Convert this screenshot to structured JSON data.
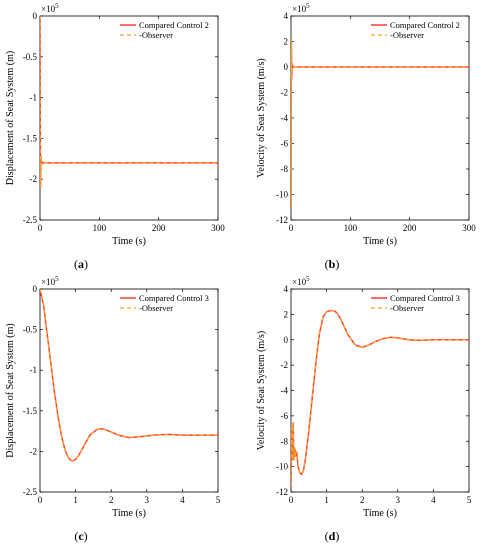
{
  "chart_data": [
    {
      "type": "line",
      "panel_label": "(a)",
      "xlabel": "Time (s)",
      "ylabel": "Displacement of Seat System (m)",
      "y_multiplier": "×10^5",
      "xlim": [
        0,
        300
      ],
      "ylim": [
        -2.5,
        0
      ],
      "xticks": [
        0,
        100,
        200,
        300
      ],
      "yticks": [
        0,
        -0.5,
        -1,
        -1.5,
        -2,
        -2.5
      ],
      "ytick_labels": [
        "0",
        "-0.5",
        "-1",
        "-1.5",
        "-2",
        "-2.5"
      ],
      "legend_position": "top-right",
      "series": [
        {
          "name": "Compared Control 2",
          "color": "#ff3b3b",
          "dash": "solid",
          "x": [
            0,
            0.3,
            0.9,
            1.7,
            2.5,
            3.5,
            5,
            300
          ],
          "y": [
            0,
            -1.0,
            -2.1,
            -1.72,
            -1.83,
            -1.79,
            -1.8,
            -1.8
          ]
        },
        {
          "name": "Observer",
          "color": "#f5a623",
          "dash": "dashed",
          "x": [
            0,
            0.3,
            0.9,
            1.7,
            2.5,
            3.5,
            5,
            300
          ],
          "y": [
            0,
            -1.0,
            -2.1,
            -1.72,
            -1.83,
            -1.79,
            -1.8,
            -1.8
          ]
        }
      ]
    },
    {
      "type": "line",
      "panel_label": "(b)",
      "xlabel": "Time (s)",
      "ylabel": "Velocity of Seat System (m/s)",
      "y_multiplier": "×10^5",
      "xlim": [
        0,
        300
      ],
      "ylim": [
        -12,
        4
      ],
      "xticks": [
        0,
        100,
        200,
        300
      ],
      "yticks": [
        4,
        2,
        0,
        -2,
        -4,
        -6,
        -8,
        -10,
        -12
      ],
      "ytick_labels": [
        "4",
        "2",
        "0",
        "-2",
        "-4",
        "-6",
        "-8",
        "-10",
        "-12"
      ],
      "legend_position": "top-right",
      "series": [
        {
          "name": "Compared Control 2",
          "color": "#ff3b3b",
          "dash": "solid",
          "x": [
            0,
            0.3,
            0.6,
            1.2,
            2,
            3,
            5,
            300
          ],
          "y": [
            0,
            -11,
            2.2,
            -1,
            0.3,
            0,
            0,
            0
          ]
        },
        {
          "name": "Observer",
          "color": "#f5a623",
          "dash": "dashed",
          "x": [
            0,
            0.3,
            0.6,
            1.2,
            2,
            3,
            5,
            300
          ],
          "y": [
            0,
            -11,
            2.2,
            -1,
            0.3,
            0,
            0,
            0
          ]
        }
      ]
    },
    {
      "type": "line",
      "panel_label": "(c)",
      "xlabel": "Time (s)",
      "ylabel": "Displacement of Seat System (m)",
      "y_multiplier": "×10^5",
      "xlim": [
        0,
        5
      ],
      "ylim": [
        -2.5,
        0
      ],
      "xticks": [
        0,
        1,
        2,
        3,
        4,
        5
      ],
      "yticks": [
        0,
        -0.5,
        -1,
        -1.5,
        -2,
        -2.5
      ],
      "ytick_labels": [
        "0",
        "-0.5",
        "-1",
        "-1.5",
        "-2",
        "-2.5"
      ],
      "legend_position": "top-right",
      "series": [
        {
          "name": "Compared Control 3",
          "color": "#ff3b3b",
          "dash": "solid",
          "x": [
            0,
            0.1,
            0.2,
            0.3,
            0.4,
            0.5,
            0.6,
            0.7,
            0.8,
            0.9,
            1.0,
            1.1,
            1.2,
            1.4,
            1.6,
            1.75,
            2.0,
            2.2,
            2.5,
            2.8,
            3.2,
            3.6,
            4.0,
            4.5,
            5.0
          ],
          "y": [
            0,
            -0.2,
            -0.55,
            -0.9,
            -1.25,
            -1.55,
            -1.8,
            -1.98,
            -2.08,
            -2.12,
            -2.1,
            -2.04,
            -1.96,
            -1.8,
            -1.73,
            -1.72,
            -1.76,
            -1.8,
            -1.83,
            -1.82,
            -1.8,
            -1.79,
            -1.8,
            -1.8,
            -1.8
          ]
        },
        {
          "name": "Observer",
          "color": "#f5a623",
          "dash": "dashed",
          "x": [
            0,
            0.1,
            0.2,
            0.3,
            0.4,
            0.5,
            0.6,
            0.7,
            0.8,
            0.9,
            1.0,
            1.1,
            1.2,
            1.4,
            1.6,
            1.75,
            2.0,
            2.2,
            2.5,
            2.8,
            3.2,
            3.6,
            4.0,
            4.5,
            5.0
          ],
          "y": [
            0,
            -0.2,
            -0.55,
            -0.9,
            -1.25,
            -1.55,
            -1.8,
            -1.98,
            -2.08,
            -2.12,
            -2.1,
            -2.04,
            -1.96,
            -1.8,
            -1.73,
            -1.72,
            -1.76,
            -1.8,
            -1.83,
            -1.82,
            -1.8,
            -1.79,
            -1.8,
            -1.8,
            -1.8
          ]
        }
      ]
    },
    {
      "type": "line",
      "panel_label": "(d)",
      "xlabel": "Time (s)",
      "ylabel": "Velocity of Seat System (m/s)",
      "y_multiplier": "×10^5",
      "xlim": [
        0,
        5
      ],
      "ylim": [
        -12,
        4
      ],
      "xticks": [
        0,
        1,
        2,
        3,
        4,
        5
      ],
      "yticks": [
        4,
        2,
        0,
        -2,
        -4,
        -6,
        -8,
        -10,
        -12
      ],
      "ytick_labels": [
        "4",
        "2",
        "0",
        "-2",
        "-4",
        "-6",
        "-8",
        "-10",
        "-12"
      ],
      "legend_position": "top-right",
      "series": [
        {
          "name": "Compared Control 3",
          "color": "#ff3b3b",
          "dash": "solid",
          "x": [
            0,
            0.02,
            0.04,
            0.06,
            0.08,
            0.1,
            0.13,
            0.16,
            0.2,
            0.25,
            0.3,
            0.35,
            0.4,
            0.5,
            0.6,
            0.7,
            0.8,
            0.9,
            1.0,
            1.1,
            1.2,
            1.3,
            1.4,
            1.5,
            1.6,
            1.8,
            2.0,
            2.2,
            2.4,
            2.6,
            2.8,
            3.0,
            3.3,
            3.6,
            4.0,
            4.5,
            5.0
          ],
          "y": [
            -11.5,
            -7,
            -9.5,
            -6.5,
            -9.5,
            -8.5,
            -9.2,
            -8.8,
            -10,
            -10.5,
            -10.6,
            -10.3,
            -9.5,
            -7.2,
            -4.5,
            -1.8,
            0.5,
            1.8,
            2.2,
            2.3,
            2.3,
            2.1,
            1.6,
            1,
            0.4,
            -0.4,
            -0.6,
            -0.4,
            -0.1,
            0.1,
            0.2,
            0.15,
            0,
            -0.05,
            0,
            0,
            0
          ]
        },
        {
          "name": "Observer",
          "color": "#f5a623",
          "dash": "dashed",
          "x": [
            0,
            0.02,
            0.04,
            0.06,
            0.08,
            0.1,
            0.13,
            0.16,
            0.2,
            0.25,
            0.3,
            0.35,
            0.4,
            0.5,
            0.6,
            0.7,
            0.8,
            0.9,
            1.0,
            1.1,
            1.2,
            1.3,
            1.4,
            1.5,
            1.6,
            1.8,
            2.0,
            2.2,
            2.4,
            2.6,
            2.8,
            3.0,
            3.3,
            3.6,
            4.0,
            4.5,
            5.0
          ],
          "y": [
            -11.5,
            -7,
            -9.5,
            -6.5,
            -9.5,
            -8.5,
            -9.2,
            -8.8,
            -10,
            -10.5,
            -10.6,
            -10.3,
            -9.5,
            -7.2,
            -4.5,
            -1.8,
            0.5,
            1.8,
            2.2,
            2.3,
            2.3,
            2.1,
            1.6,
            1,
            0.4,
            -0.4,
            -0.6,
            -0.4,
            -0.1,
            0.1,
            0.2,
            0.15,
            0,
            -0.05,
            0,
            0,
            0
          ]
        }
      ]
    }
  ]
}
